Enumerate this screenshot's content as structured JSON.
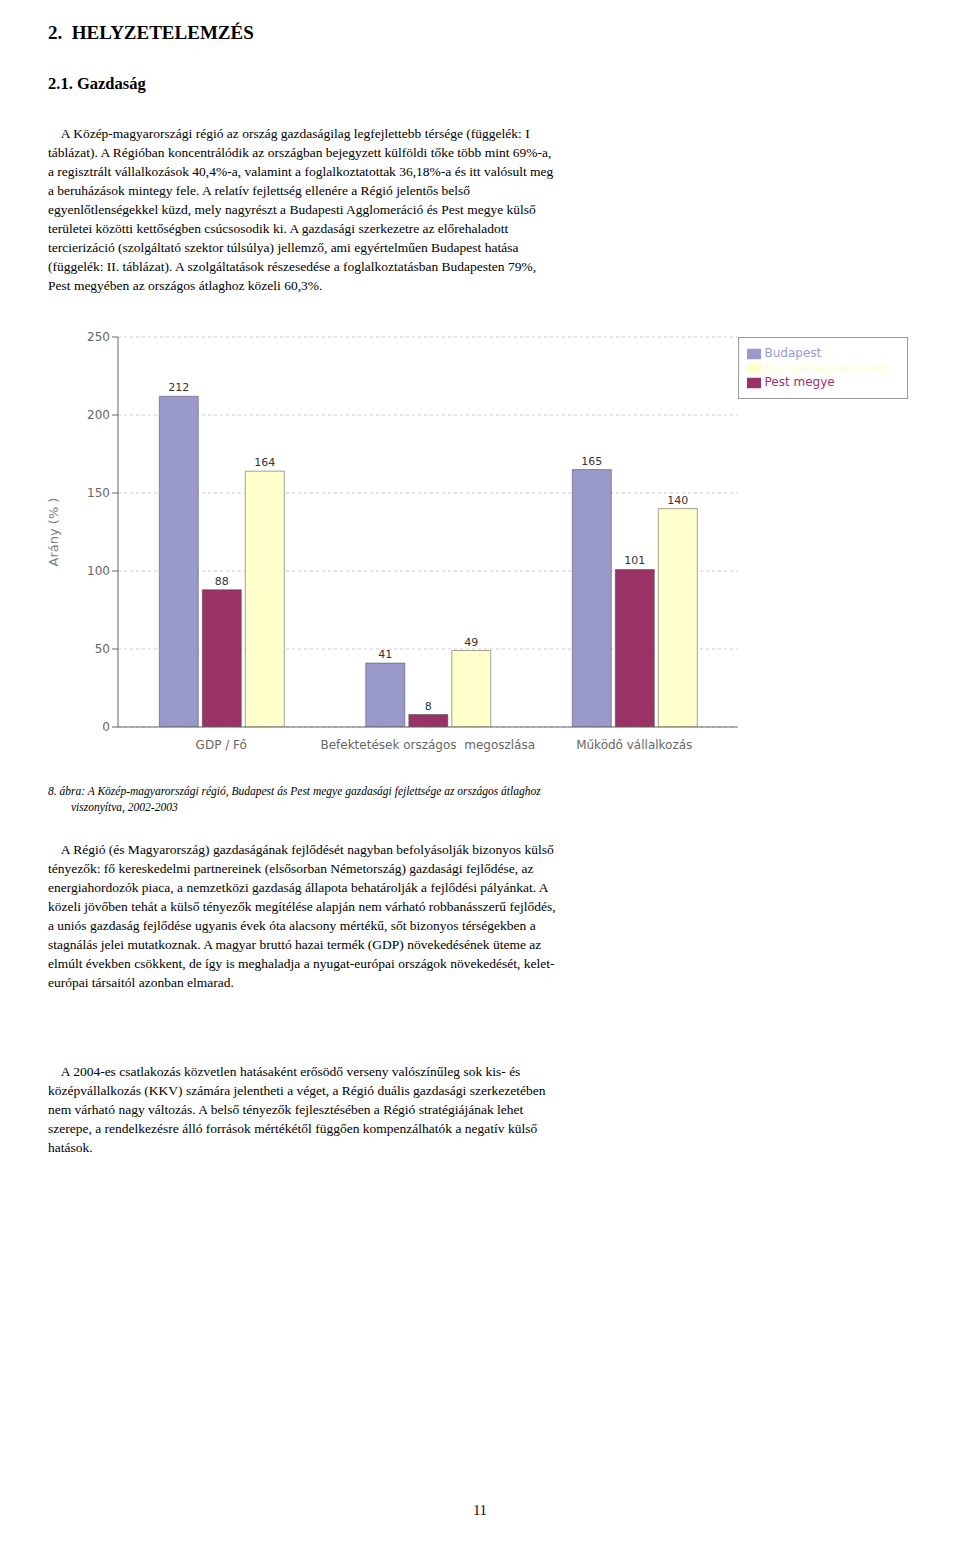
{
  "chart_data": {
    "type": "bar",
    "title": "2.  HELYZETELEMZÉS",
    "subtitle": "2.1. Gazdaság",
    "text_before": [
      "    A Közép-magyarországi régió az ország gazdaságilag legfejlettebb térsége (függelék: I",
      "táblázat). A Régióban koncentrálódik az országban bejegyzett külföldi tőke több mint 69%-a,",
      "a regisztrált vállalkozások 40,4%-a, valamint a foglalkoztatottak 36,18%-a és itt valósult meg",
      "a beruházások mintegy fele. A relatív fejlettség ellenére a Régió jelentős belső",
      "egyenlőtlenségekkel küzd, mely nagyrészt a Budapesti Agglomeráció és Pest megye külső",
      "területei közötti kettőségben csúcsosodik ki. A gazdasági szerkezetre az előrehaladott",
      "tercierizáció (szolgáltató szektor túlsúlya) jellemző, ami egyértelműen Budapest hatása",
      "(függelék: II. táblázat). A szolgáltatások részesedése a foglalkoztatásban Budapesten 79%,",
      "Pest megyében az országos átlaghoz közeli 60,3%."
    ],
    "caption": [
      "8. ábra: A Közép-magyarországi régió, Budapest ás Pest megye gazdasági fejlettsége az országos átlaghoz",
      "        viszonyítva, 2002-2003"
    ],
    "text_after": [
      [
        "    A Régió (és Magyarország) gazdaságának fejlődését nagyban befolyásolják bizonyos külső",
        "tényezők: fő kereskedelmi partnereinek (elsősorban Németország) gazdasági fejlődése, az",
        "energiahordozók piaca, a nemzetközi gazdaság állapota behatárolják a fejlődési pályánkat. A",
        "közeli jövőben tehát a külső tényezők megítélése alapján nem várható robbanásszerű fejlődés,",
        "a uniós gazdaság fejlődése ugyanis évek óta alacsony mértékű, sőt bizonyos térségekben a",
        "stagnálás jelei mutatkoznak. A magyar bruttó hazai termék (GDP) növekedésének üteme az",
        "elmúlt években csökkent, de így is meghaladja a nyugat-európai országok növekedését, kelet-",
        "európai társaitól azonban elmarad."
      ],
      [
        "    A 2004-es csatlakozás közvetlen hatásaként erősödő verseny valószínűleg sok kis- és",
        "középvállalkozás (KKV) számára jelentheti a véget, a Régió duális gazdasági szerkezetében",
        "nem várható nagy változás. A belső tényezők fejlesztésében a Régió stratégiájának lehet",
        "szerepe, a rendelkezésre álló források mértékétől függően kompenzálhatók a negatív külső",
        "hatások."
      ]
    ],
    "page_number": "11",
    "categories": [
      "GDP / Fő",
      "Befektetések országos  megoszlása",
      "Működő vállalkozás"
    ],
    "series": [
      {
        "name": "Budapest",
        "color": "#9999cc",
        "values": [
          212,
          41,
          165
        ]
      },
      {
        "name": "Pest megye",
        "color": "#993366",
        "values": [
          88,
          8,
          101
        ]
      },
      {
        "name": "Közép-Magyarország",
        "color": "#ffffcc",
        "values": [
          164,
          49,
          140
        ]
      }
    ],
    "ylabel": "Arány (% )",
    "ylim": [
      0,
      250
    ],
    "yticks": [
      0,
      50,
      100,
      150,
      200,
      250
    ],
    "grid": true,
    "legend": "right",
    "data_labels": true
  }
}
